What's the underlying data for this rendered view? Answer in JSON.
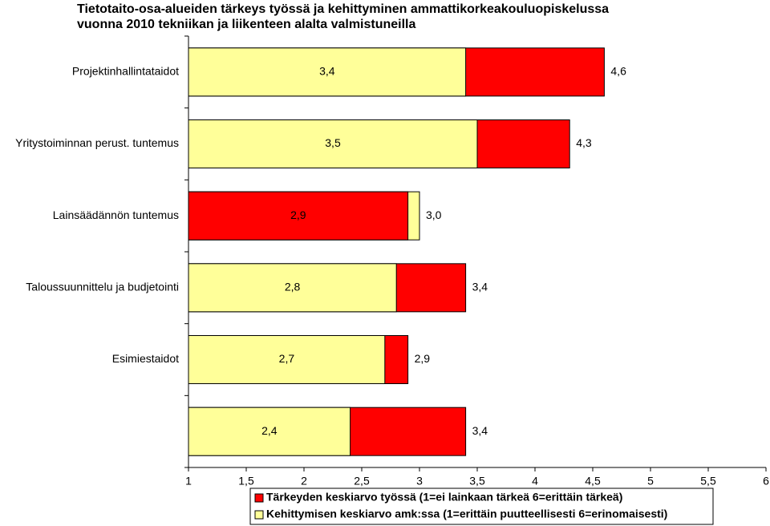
{
  "chart_data": {
    "type": "overlapping-bar",
    "title": [
      "Tietotaito-osa-alueiden tärkeys työssä ja kehittyminen ammattikorkeakouluopiskelussa",
      "vuonna 2010 tekniikan ja liikenteen alalta valmistuneilla"
    ],
    "categories": [
      "Projektinhallintataidot",
      "Yritystoiminnan perust. tuntemus",
      "Lainsäädännön tuntemus",
      "Taloussuunnittelu ja budjetointi",
      "Esimiestaidot",
      null
    ],
    "series": [
      {
        "name": "Tärkeyden keskiarvo työssä (1=ei lainkaan tärkeä 6=erittäin tärkeä)",
        "color": "#ff0000",
        "values": [
          4.6,
          4.3,
          2.9,
          3.4,
          2.9,
          3.4
        ],
        "value_labels": [
          "4,6",
          "4,3",
          "2,9",
          "3,4",
          "2,9",
          "3,4"
        ]
      },
      {
        "name": "Kehittymisen keskiarvo amk:ssa (1=erittäin puutteellisesti 6=erinomaisesti)",
        "color": "#ffff99",
        "values": [
          3.4,
          3.5,
          3.0,
          2.8,
          2.7,
          2.4
        ],
        "value_labels": [
          "3,4",
          "3,5",
          "3,0",
          "2,8",
          "2,7",
          "2,4"
        ]
      }
    ],
    "xlim": [
      1,
      6
    ],
    "xticks": [
      1,
      {
        "value": 1.5,
        "label": "1,5"
      },
      2,
      {
        "value": 2.5,
        "label": "2,5"
      },
      3,
      {
        "value": 3.5,
        "label": "3,5"
      },
      4,
      {
        "value": 4.5,
        "label": "4,5"
      },
      5,
      {
        "value": 5.5,
        "label": "5,5"
      },
      6
    ],
    "grid": false
  }
}
